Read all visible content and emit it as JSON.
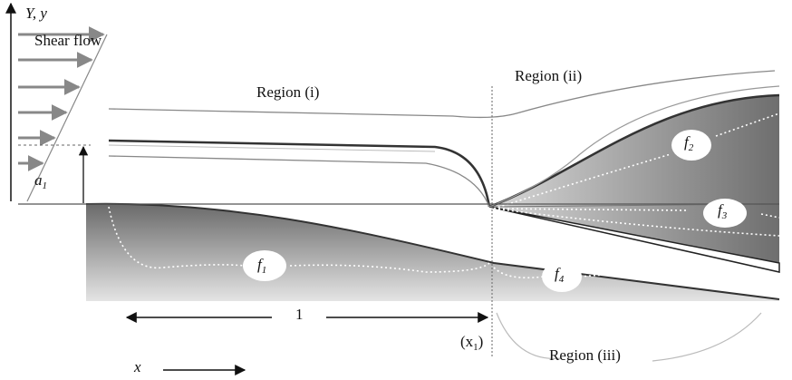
{
  "axis_label": "Y, y",
  "shear_flow": "Shear flow",
  "regions": [
    "Region (i)",
    "Region (ii)",
    "Region (iii)"
  ],
  "height_label": {
    "base": "a",
    "sub": "1"
  },
  "functions": [
    {
      "base": "f",
      "sub": "1"
    },
    {
      "base": "f",
      "sub": "2"
    },
    {
      "base": "f",
      "sub": "3"
    },
    {
      "base": "f",
      "sub": "4"
    }
  ],
  "length_label": "1",
  "position_label": {
    "open": "(x",
    "sub": "1",
    "close": ")"
  },
  "x_label": "x"
}
